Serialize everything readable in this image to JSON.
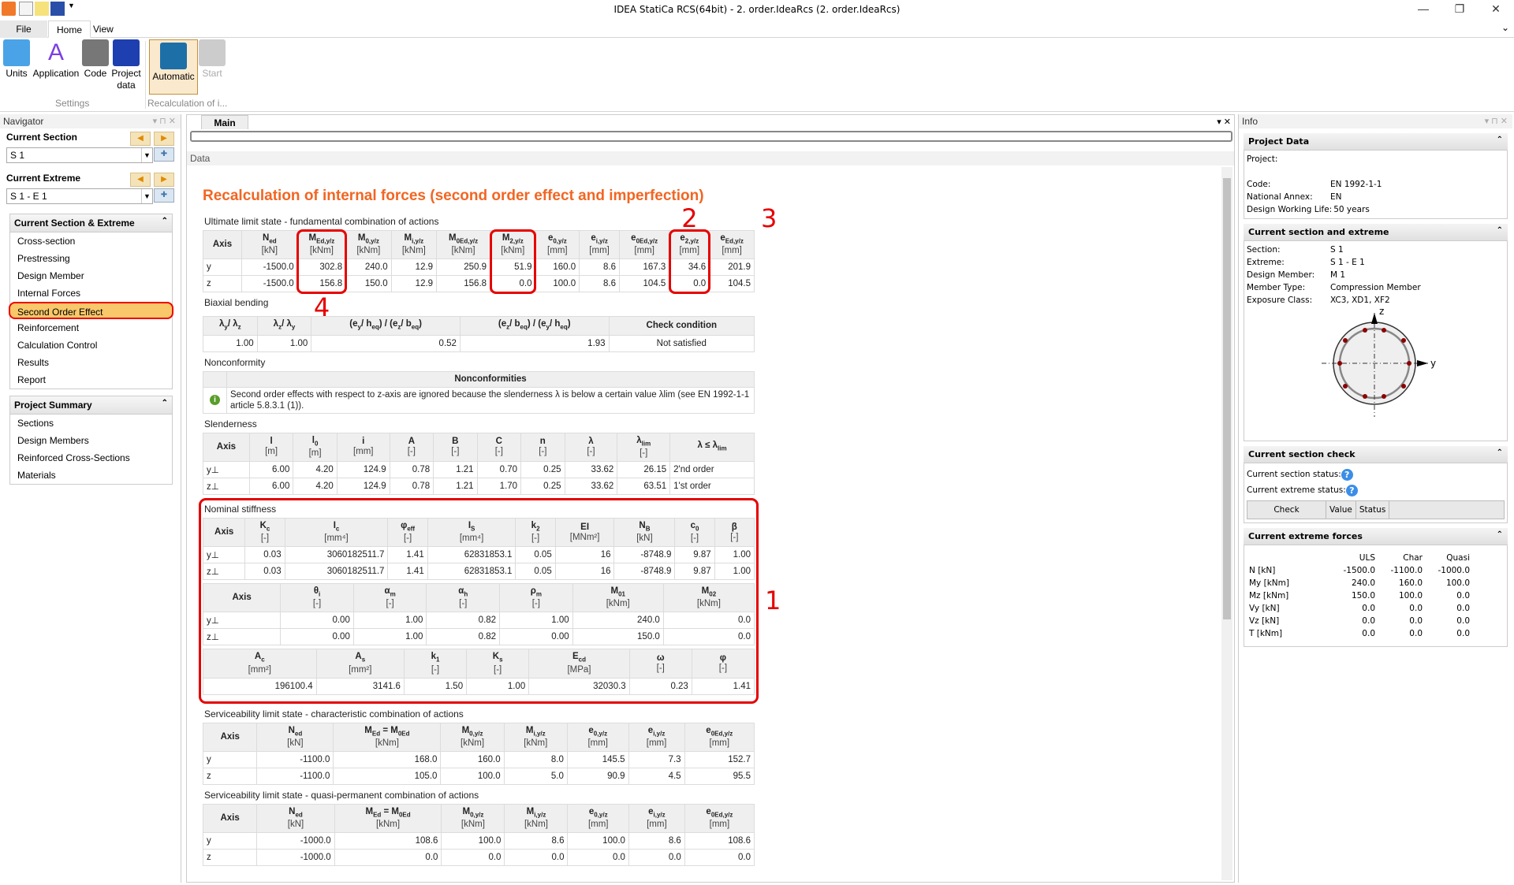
{
  "window": {
    "title": "IDEA StatiCa RCS(64bit) - 2. order.IdeaRcs (2. order.IdeaRcs)",
    "minimize": "—",
    "restore": "❐",
    "close": "✕"
  },
  "ribbon": {
    "tabs": [
      "File",
      "Home",
      "View"
    ],
    "buttons": {
      "units": "Units",
      "application": "Application",
      "code": "Code",
      "project_data": "Project data",
      "automatic": "Automatic",
      "start": "Start"
    },
    "groups": {
      "settings": "Settings",
      "recalc": "Recalculation of i..."
    }
  },
  "navigator": {
    "title": "Navigator",
    "current_section_label": "Current Section",
    "current_section_value": "S 1",
    "current_extreme_label": "Current Extreme",
    "current_extreme_value": "S 1 - E 1",
    "group1": {
      "title": "Current Section & Extreme",
      "items": [
        "Cross-section",
        "Prestressing",
        "Design Member",
        "Internal Forces",
        "Second Order Effect",
        "Reinforcement",
        "Calculation Control",
        "Results",
        "Report"
      ],
      "selected": "Second Order Effect"
    },
    "group2": {
      "title": "Project Summary",
      "items": [
        "Sections",
        "Design Members",
        "Reinforced Cross-Sections",
        "Materials"
      ]
    }
  },
  "main": {
    "tab": "Main",
    "data_title": "Data",
    "page_title": "Recalculation of internal forces (second order effect and imperfection)",
    "uls": {
      "title": "Ultimate limit state - fundamental combination of actions",
      "header": [
        {
          "t": "Axis"
        },
        {
          "t": "N",
          "s": "ed",
          "u": "[kN]"
        },
        {
          "t": "M",
          "s": "Ed,y/z",
          "u": "[kNm]"
        },
        {
          "t": "M",
          "s": "0,y/z",
          "u": "[kNm]"
        },
        {
          "t": "M",
          "s": "i,y/z",
          "u": "[kNm]"
        },
        {
          "t": "M",
          "s": "0Ed,y/z",
          "u": "[kNm]"
        },
        {
          "t": "M",
          "s": "2,y/z",
          "u": "[kNm]"
        },
        {
          "t": "e",
          "s": "0,y/z",
          "u": "[mm]"
        },
        {
          "t": "e",
          "s": "i,y/z",
          "u": "[mm]"
        },
        {
          "t": "e",
          "s": "0Ed,y/z",
          "u": "[mm]"
        },
        {
          "t": "e",
          "s": "2,y/z",
          "u": "[mm]"
        },
        {
          "t": "e",
          "s": "Ed,y/z",
          "u": "[mm]"
        }
      ],
      "rows": [
        [
          "y",
          "-1500.0",
          "302.8",
          "240.0",
          "12.9",
          "250.9",
          "51.9",
          "160.0",
          "8.6",
          "167.3",
          "34.6",
          "201.9"
        ],
        [
          "z",
          "-1500.0",
          "156.8",
          "150.0",
          "12.9",
          "156.8",
          "0.0",
          "100.0",
          "8.6",
          "104.5",
          "0.0",
          "104.5"
        ]
      ]
    },
    "biaxial": {
      "title": "Biaxial bending",
      "header": [
        {
          "t": "λ",
          "s": "y",
          "t2": "/ λ",
          "s2": "z"
        },
        {
          "t": "λ",
          "s": "z",
          "t2": "/ λ",
          "s2": "y"
        },
        {
          "t": "(e",
          "s": "y",
          "t2": "/ h",
          "s2": "eq",
          "t3": ") / (e",
          "s3": "z",
          "t4": "/ b",
          "s4": "eq",
          "t5": ")"
        },
        {
          "t": "(e",
          "s": "z",
          "t2": "/ b",
          "s2": "eq",
          "t3": ") / (e",
          "s3": "y",
          "t4": "/ h",
          "s4": "eq",
          "t5": ")"
        },
        {
          "t": "Check condition"
        }
      ],
      "rows": [
        [
          "1.00",
          "1.00",
          "0.52",
          "1.93",
          "Not satisfied"
        ]
      ]
    },
    "nonconformity": {
      "title": "Nonconformity",
      "header": "Nonconformities",
      "message": "Second order effects with respect to z-axis are ignored because the slenderness λ is below a certain value λlim (see EN 1992-1-1 article 5.8.3.1 (1)).",
      "icon": "info-icon"
    },
    "slenderness": {
      "title": "Slenderness",
      "header": [
        {
          "t": "Axis"
        },
        {
          "t": "l",
          "u": "[m]"
        },
        {
          "t": "l",
          "s": "0",
          "u": "[m]"
        },
        {
          "t": "i",
          "u": "[mm]"
        },
        {
          "t": "A",
          "u": "[-]"
        },
        {
          "t": "B",
          "u": "[-]"
        },
        {
          "t": "C",
          "u": "[-]"
        },
        {
          "t": "n",
          "u": "[-]"
        },
        {
          "t": "λ",
          "u": "[-]"
        },
        {
          "t": "λ",
          "s": "lim",
          "u": "[-]"
        },
        {
          "t": "λ ≤ λ",
          "s": "lim"
        }
      ],
      "rows": [
        [
          "y⊥",
          "6.00",
          "4.20",
          "124.9",
          "0.78",
          "1.21",
          "0.70",
          "0.25",
          "33.62",
          "26.15",
          "2'nd order"
        ],
        [
          "z⊥",
          "6.00",
          "4.20",
          "124.9",
          "0.78",
          "1.21",
          "1.70",
          "0.25",
          "33.62",
          "63.51",
          "1'st order"
        ]
      ]
    },
    "stiffness": {
      "title": "Nominal stiffness",
      "t1": {
        "header": [
          {
            "t": "Axis"
          },
          {
            "t": "K",
            "s": "c",
            "u": "[-]"
          },
          {
            "t": "I",
            "s": "c",
            "u": "[mm⁴]"
          },
          {
            "t": "φ",
            "s": "eff",
            "u": "[-]"
          },
          {
            "t": "I",
            "s": "S",
            "u": "[mm⁴]"
          },
          {
            "t": "k",
            "s": "2",
            "u": "[-]"
          },
          {
            "t": "EI",
            "u": "[MNm²]"
          },
          {
            "t": "N",
            "s": "B",
            "u": "[kN]"
          },
          {
            "t": "c",
            "s": "0",
            "u": "[-]"
          },
          {
            "t": "β",
            "u": "[-]"
          }
        ],
        "rows": [
          [
            "y⊥",
            "0.03",
            "3060182511.7",
            "1.41",
            "62831853.1",
            "0.05",
            "16",
            "-8748.9",
            "9.87",
            "1.00"
          ],
          [
            "z⊥",
            "0.03",
            "3060182511.7",
            "1.41",
            "62831853.1",
            "0.05",
            "16",
            "-8748.9",
            "9.87",
            "1.00"
          ]
        ]
      },
      "t2": {
        "header": [
          {
            "t": "Axis"
          },
          {
            "t": "θ",
            "s": "i",
            "u": "[-]"
          },
          {
            "t": "α",
            "s": "m",
            "u": "[-]"
          },
          {
            "t": "α",
            "s": "h",
            "u": "[-]"
          },
          {
            "t": "ρ",
            "s": "m",
            "u": "[-]"
          },
          {
            "t": "M",
            "s": "01",
            "u": "[kNm]"
          },
          {
            "t": "M",
            "s": "02",
            "u": "[kNm]"
          }
        ],
        "rows": [
          [
            "y⊥",
            "0.00",
            "1.00",
            "0.82",
            "1.00",
            "240.0",
            "0.0"
          ],
          [
            "z⊥",
            "0.00",
            "1.00",
            "0.82",
            "0.00",
            "150.0",
            "0.0"
          ]
        ]
      },
      "t3": {
        "header": [
          {
            "t": "A",
            "s": "c",
            "u": "[mm²]"
          },
          {
            "t": "A",
            "s": "s",
            "u": "[mm²]"
          },
          {
            "t": "k",
            "s": "1",
            "u": "[-]"
          },
          {
            "t": "K",
            "s": "s",
            "u": "[-]"
          },
          {
            "t": "E",
            "s": "cd",
            "u": "[MPa]"
          },
          {
            "t": "ω",
            "u": "[-]"
          },
          {
            "t": "φ",
            "u": "[-]"
          }
        ],
        "rows": [
          [
            "196100.4",
            "3141.6",
            "1.50",
            "1.00",
            "32030.3",
            "0.23",
            "1.41"
          ]
        ]
      }
    },
    "sls_char": {
      "title": "Serviceability limit state - characteristic combination of actions",
      "header": [
        {
          "t": "Axis"
        },
        {
          "t": "N",
          "s": "ed",
          "u": "[kN]"
        },
        {
          "t": "M",
          "s": "Ed",
          "t2": " = M",
          "s2": "0Ed",
          "u": "[kNm]"
        },
        {
          "t": "M",
          "s": "0,y/z",
          "u": "[kNm]"
        },
        {
          "t": "M",
          "s": "i,y/z",
          "u": "[kNm]"
        },
        {
          "t": "e",
          "s": "0,y/z",
          "u": "[mm]"
        },
        {
          "t": "e",
          "s": "i,y/z",
          "u": "[mm]"
        },
        {
          "t": "e",
          "s": "0Ed,y/z",
          "u": "[mm]"
        }
      ],
      "rows": [
        [
          "y",
          "-1100.0",
          "168.0",
          "160.0",
          "8.0",
          "145.5",
          "7.3",
          "152.7"
        ],
        [
          "z",
          "-1100.0",
          "105.0",
          "100.0",
          "5.0",
          "90.9",
          "4.5",
          "95.5"
        ]
      ]
    },
    "sls_quasi": {
      "title": "Serviceability limit state - quasi-permanent combination of actions",
      "header": [
        {
          "t": "Axis"
        },
        {
          "t": "N",
          "s": "ed",
          "u": "[kN]"
        },
        {
          "t": "M",
          "s": "Ed",
          "t2": " = M",
          "s2": "0Ed",
          "u": "[kNm]"
        },
        {
          "t": "M",
          "s": "0,y/z",
          "u": "[kNm]"
        },
        {
          "t": "M",
          "s": "i,y/z",
          "u": "[kNm]"
        },
        {
          "t": "e",
          "s": "0,y/z",
          "u": "[mm]"
        },
        {
          "t": "e",
          "s": "i,y/z",
          "u": "[mm]"
        },
        {
          "t": "e",
          "s": "0Ed,y/z",
          "u": "[mm]"
        }
      ],
      "rows": [
        [
          "y",
          "-1000.0",
          "108.6",
          "100.0",
          "8.6",
          "100.0",
          "8.6",
          "108.6"
        ],
        [
          "z",
          "-1000.0",
          "0.0",
          "0.0",
          "0.0",
          "0.0",
          "0.0",
          "0.0"
        ]
      ]
    }
  },
  "annotations": {
    "a1": "1",
    "a2": "2",
    "a3": "3",
    "a4": "4",
    "color": "#e60000"
  },
  "info": {
    "title": "Info",
    "project": {
      "title": "Project Data",
      "items": [
        [
          "Project:",
          ""
        ],
        [
          "",
          ""
        ],
        [
          "Code:",
          "EN 1992-1-1"
        ],
        [
          "National Annex:",
          "EN"
        ],
        [
          "Design Working Life:",
          "50 years"
        ]
      ]
    },
    "section": {
      "title": "Current section and extreme",
      "items": [
        [
          "Section:",
          "S 1"
        ],
        [
          "Extreme:",
          "S 1 - E 1"
        ],
        [
          "Design Member:",
          "M 1"
        ],
        [
          "Member Type:",
          "Compression Member"
        ],
        [
          "Exposure Class:",
          "XC3, XD1, XF2"
        ]
      ],
      "axis_z": "z",
      "axis_y": "y"
    },
    "check": {
      "title": "Current section check",
      "section_status": "Current section status:",
      "extreme_status": "Current extreme status:",
      "cols": [
        "Check",
        "Value",
        "Status"
      ]
    },
    "forces": {
      "title": "Current extreme forces",
      "cols": [
        "",
        "ULS",
        "Char",
        "Quasi"
      ],
      "rows": [
        [
          "N [kN]",
          "-1500.0",
          "-1100.0",
          "-1000.0"
        ],
        [
          "My [kNm]",
          "240.0",
          "160.0",
          "100.0"
        ],
        [
          "Mz [kNm]",
          "150.0",
          "100.0",
          "0.0"
        ],
        [
          "Vy [kN]",
          "0.0",
          "0.0",
          "0.0"
        ],
        [
          "Vz [kN]",
          "0.0",
          "0.0",
          "0.0"
        ],
        [
          "T [kNm]",
          "0.0",
          "0.0",
          "0.0"
        ]
      ]
    }
  },
  "colors": {
    "accent": "#f26522",
    "selected": "#f8c86a",
    "highlight": "#e60000"
  }
}
